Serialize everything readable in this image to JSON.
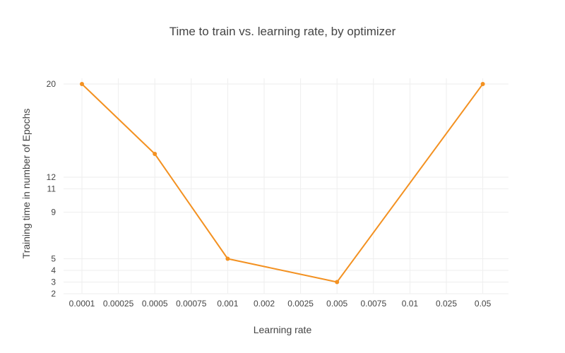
{
  "chart_data": {
    "type": "line",
    "title": "Time to train vs. learning rate, by optimizer",
    "xlabel": "Learning rate",
    "ylabel": "Training time in number of Epochs",
    "categories": [
      "0.0001",
      "0.00025",
      "0.0005",
      "0.00075",
      "0.001",
      "0.002",
      "0.0025",
      "0.005",
      "0.0075",
      "0.01",
      "0.025",
      "0.05"
    ],
    "series": [
      {
        "color": "#f39121",
        "points": [
          {
            "x": "0.0001",
            "y": 20
          },
          {
            "x": "0.0005",
            "y": 14
          },
          {
            "x": "0.001",
            "y": 5
          },
          {
            "x": "0.005",
            "y": 3
          },
          {
            "x": "0.05",
            "y": 20
          }
        ]
      }
    ],
    "y_ticks": [
      2,
      3,
      4,
      5,
      9,
      11,
      12,
      20
    ],
    "ylim": [
      2,
      20
    ],
    "grid": true,
    "legend": false
  }
}
